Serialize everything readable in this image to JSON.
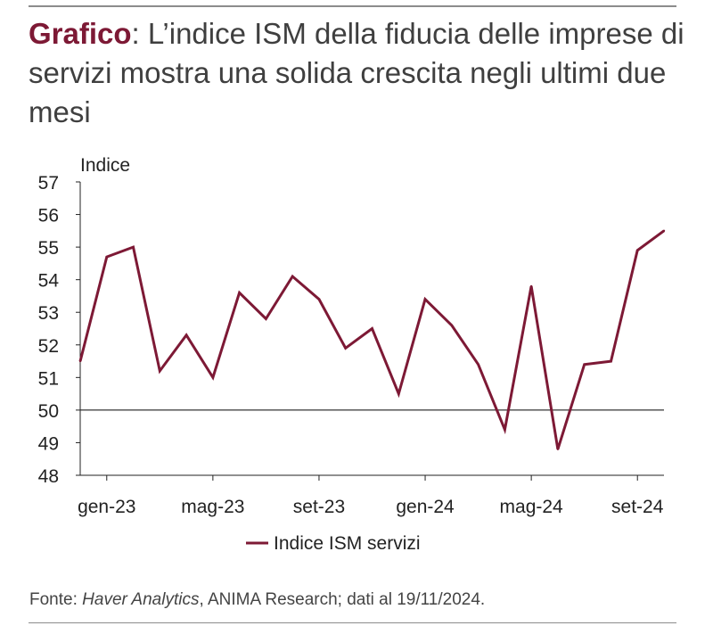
{
  "header": {
    "title_lead": "Grafico",
    "title_rest": ": L’indice ISM della fiducia delle imprese di servizi mostra una solida crescita negli ultimi due mesi"
  },
  "footer": {
    "source_prefix": "Fonte: ",
    "source_italic": "Haver Analytics",
    "source_rest": ", ANIMA Research; dati al 19/11/2024."
  },
  "colors": {
    "series": "#7d1935",
    "reference_line": "#000000",
    "axis": "#222222"
  },
  "chart_data": {
    "type": "line",
    "title": "",
    "ylabel": "Indice",
    "xlabel": "",
    "ylim": [
      48,
      57
    ],
    "yticks": [
      48,
      49,
      50,
      51,
      52,
      53,
      54,
      55,
      56,
      57
    ],
    "reference_line": 50,
    "x_tick_labels": [
      "gen-23",
      "mag-23",
      "set-23",
      "gen-24",
      "mag-24",
      "set-24"
    ],
    "x": [
      "dic-22",
      "gen-23",
      "feb-23",
      "mar-23",
      "apr-23",
      "mag-23",
      "giu-23",
      "lug-23",
      "ago-23",
      "set-23",
      "ott-23",
      "nov-23",
      "dic-23",
      "gen-24",
      "feb-24",
      "mar-24",
      "apr-24",
      "mag-24",
      "giu-24",
      "lug-24",
      "ago-24",
      "set-24",
      "ott-24"
    ],
    "series": [
      {
        "name": "Indice ISM servizi",
        "values": [
          51.5,
          54.7,
          55.0,
          51.2,
          52.3,
          51.0,
          53.6,
          52.8,
          54.1,
          53.4,
          51.9,
          52.5,
          50.5,
          53.4,
          52.6,
          51.4,
          49.4,
          53.8,
          48.8,
          51.4,
          51.5,
          54.9,
          55.5
        ]
      }
    ],
    "legend": "bottom-center",
    "grid": false
  }
}
